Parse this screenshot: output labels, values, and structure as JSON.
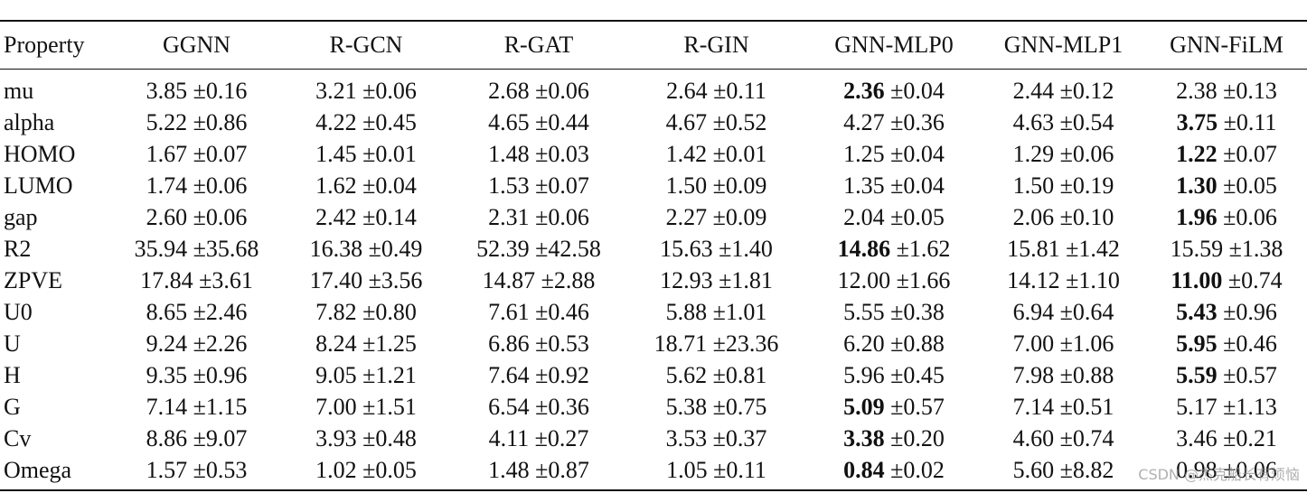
{
  "table": {
    "header": [
      "Property",
      "GGNN",
      "R-GCN",
      "R-GAT",
      "R-GIN",
      "GNN-MLP0",
      "GNN-MLP1",
      "GNN-FiLM"
    ],
    "rows": [
      {
        "property": "mu",
        "cells": [
          {
            "mean": "3.85",
            "std": "±0.16"
          },
          {
            "mean": "3.21",
            "std": "±0.06"
          },
          {
            "mean": "2.68",
            "std": "±0.06"
          },
          {
            "mean": "2.64",
            "std": "±0.11"
          },
          {
            "mean": "2.36",
            "std": "±0.04",
            "bold": true
          },
          {
            "mean": "2.44",
            "std": "±0.12"
          },
          {
            "mean": "2.38",
            "std": "±0.13"
          }
        ]
      },
      {
        "property": "alpha",
        "cells": [
          {
            "mean": "5.22",
            "std": "±0.86"
          },
          {
            "mean": "4.22",
            "std": "±0.45"
          },
          {
            "mean": "4.65",
            "std": "±0.44"
          },
          {
            "mean": "4.67",
            "std": "±0.52"
          },
          {
            "mean": "4.27",
            "std": "±0.36"
          },
          {
            "mean": "4.63",
            "std": "±0.54"
          },
          {
            "mean": "3.75",
            "std": "±0.11",
            "bold": true
          }
        ]
      },
      {
        "property": "HOMO",
        "cells": [
          {
            "mean": "1.67",
            "std": "±0.07"
          },
          {
            "mean": "1.45",
            "std": "±0.01"
          },
          {
            "mean": "1.48",
            "std": "±0.03"
          },
          {
            "mean": "1.42",
            "std": "±0.01"
          },
          {
            "mean": "1.25",
            "std": "±0.04"
          },
          {
            "mean": "1.29",
            "std": "±0.06"
          },
          {
            "mean": "1.22",
            "std": "±0.07",
            "bold": true
          }
        ]
      },
      {
        "property": "LUMO",
        "cells": [
          {
            "mean": "1.74",
            "std": "±0.06"
          },
          {
            "mean": "1.62",
            "std": "±0.04"
          },
          {
            "mean": "1.53",
            "std": "±0.07"
          },
          {
            "mean": "1.50",
            "std": "±0.09"
          },
          {
            "mean": "1.35",
            "std": "±0.04"
          },
          {
            "mean": "1.50",
            "std": "±0.19"
          },
          {
            "mean": "1.30",
            "std": "±0.05",
            "bold": true
          }
        ]
      },
      {
        "property": "gap",
        "cells": [
          {
            "mean": "2.60",
            "std": "±0.06"
          },
          {
            "mean": "2.42",
            "std": "±0.14"
          },
          {
            "mean": "2.31",
            "std": "±0.06"
          },
          {
            "mean": "2.27",
            "std": "±0.09"
          },
          {
            "mean": "2.04",
            "std": "±0.05"
          },
          {
            "mean": "2.06",
            "std": "±0.10"
          },
          {
            "mean": "1.96",
            "std": "±0.06",
            "bold": true
          }
        ]
      },
      {
        "property": "R2",
        "cells": [
          {
            "mean": "35.94",
            "std": "±35.68"
          },
          {
            "mean": "16.38",
            "std": "±0.49"
          },
          {
            "mean": "52.39",
            "std": "±42.58"
          },
          {
            "mean": "15.63",
            "std": "±1.40"
          },
          {
            "mean": "14.86",
            "std": "±1.62",
            "bold": true
          },
          {
            "mean": "15.81",
            "std": "±1.42"
          },
          {
            "mean": "15.59",
            "std": "±1.38"
          }
        ]
      },
      {
        "property": "ZPVE",
        "cells": [
          {
            "mean": "17.84",
            "std": "±3.61"
          },
          {
            "mean": "17.40",
            "std": "±3.56"
          },
          {
            "mean": "14.87",
            "std": "±2.88"
          },
          {
            "mean": "12.93",
            "std": "±1.81"
          },
          {
            "mean": "12.00",
            "std": "±1.66"
          },
          {
            "mean": "14.12",
            "std": "±1.10"
          },
          {
            "mean": "11.00",
            "std": "±0.74",
            "bold": true
          }
        ]
      },
      {
        "property": "U0",
        "cells": [
          {
            "mean": "8.65",
            "std": "±2.46"
          },
          {
            "mean": "7.82",
            "std": "±0.80"
          },
          {
            "mean": "7.61",
            "std": "±0.46"
          },
          {
            "mean": "5.88",
            "std": "±1.01"
          },
          {
            "mean": "5.55",
            "std": "±0.38"
          },
          {
            "mean": "6.94",
            "std": "±0.64"
          },
          {
            "mean": "5.43",
            "std": "±0.96",
            "bold": true
          }
        ]
      },
      {
        "property": "U",
        "cells": [
          {
            "mean": "9.24",
            "std": "±2.26"
          },
          {
            "mean": "8.24",
            "std": "±1.25"
          },
          {
            "mean": "6.86",
            "std": "±0.53"
          },
          {
            "mean": "18.71",
            "std": "±23.36"
          },
          {
            "mean": "6.20",
            "std": "±0.88"
          },
          {
            "mean": "7.00",
            "std": "±1.06"
          },
          {
            "mean": "5.95",
            "std": "±0.46",
            "bold": true
          }
        ]
      },
      {
        "property": "H",
        "cells": [
          {
            "mean": "9.35",
            "std": "±0.96"
          },
          {
            "mean": "9.05",
            "std": "±1.21"
          },
          {
            "mean": "7.64",
            "std": "±0.92"
          },
          {
            "mean": "5.62",
            "std": "±0.81"
          },
          {
            "mean": "5.96",
            "std": "±0.45"
          },
          {
            "mean": "7.98",
            "std": "±0.88"
          },
          {
            "mean": "5.59",
            "std": "±0.57",
            "bold": true
          }
        ]
      },
      {
        "property": "G",
        "cells": [
          {
            "mean": "7.14",
            "std": "±1.15"
          },
          {
            "mean": "7.00",
            "std": "±1.51"
          },
          {
            "mean": "6.54",
            "std": "±0.36"
          },
          {
            "mean": "5.38",
            "std": "±0.75"
          },
          {
            "mean": "5.09",
            "std": "±0.57",
            "bold": true
          },
          {
            "mean": "7.14",
            "std": "±0.51"
          },
          {
            "mean": "5.17",
            "std": "±1.13"
          }
        ]
      },
      {
        "property": "Cv",
        "cells": [
          {
            "mean": "8.86",
            "std": "±9.07"
          },
          {
            "mean": "3.93",
            "std": "±0.48"
          },
          {
            "mean": "4.11",
            "std": "±0.27"
          },
          {
            "mean": "3.53",
            "std": "±0.37"
          },
          {
            "mean": "3.38",
            "std": "±0.20",
            "bold": true
          },
          {
            "mean": "4.60",
            "std": "±0.74"
          },
          {
            "mean": "3.46",
            "std": "±0.21"
          }
        ]
      },
      {
        "property": "Omega",
        "cells": [
          {
            "mean": "1.57",
            "std": "±0.53"
          },
          {
            "mean": "1.02",
            "std": "±0.05"
          },
          {
            "mean": "1.48",
            "std": "±0.87"
          },
          {
            "mean": "1.05",
            "std": "±0.11"
          },
          {
            "mean": "0.84",
            "std": "±0.02",
            "bold": true
          },
          {
            "mean": "5.60",
            "std": "±8.82"
          },
          {
            "mean": "0.98",
            "std": "±0.06"
          }
        ]
      }
    ]
  },
  "watermark": "CSDN @杰克船长有烦恼"
}
